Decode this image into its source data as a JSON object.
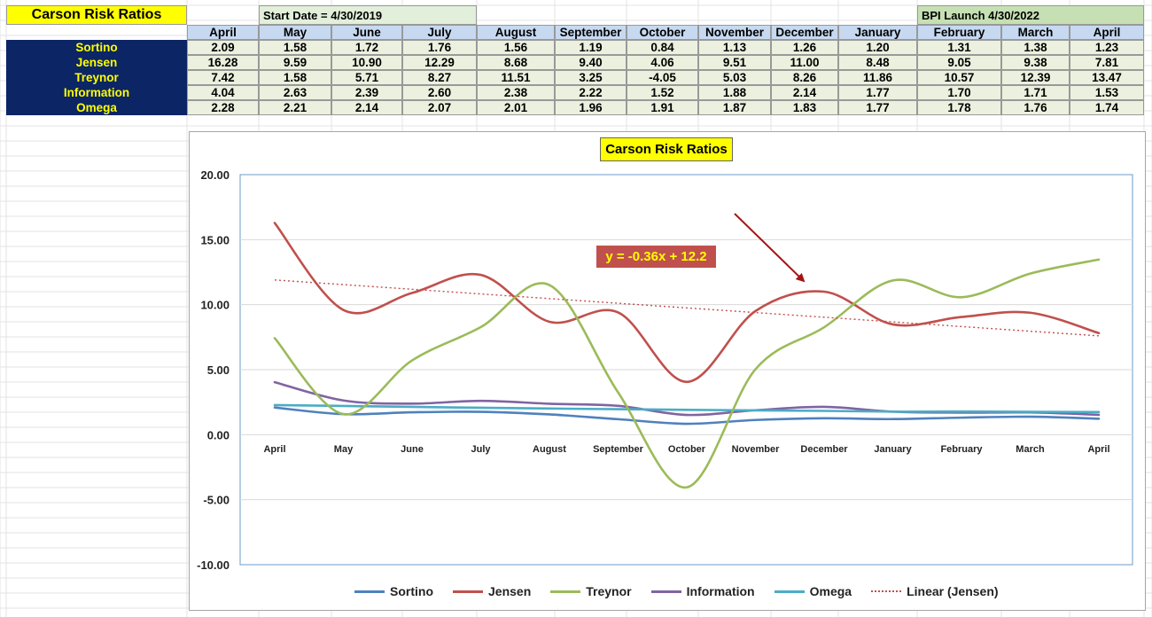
{
  "sheet": {
    "title": "Carson Risk Ratios",
    "start_note": "Start Date = 4/30/2019",
    "bpi_note": "BPI Launch 4/30/2022",
    "months": [
      "April",
      "May",
      "June",
      "July",
      "August",
      "September",
      "October",
      "November",
      "December",
      "January",
      "February",
      "March",
      "April"
    ],
    "rows": [
      {
        "label": "Sortino",
        "values": [
          "2.09",
          "1.58",
          "1.72",
          "1.76",
          "1.56",
          "1.19",
          "0.84",
          "1.13",
          "1.26",
          "1.20",
          "1.31",
          "1.38",
          "1.23"
        ]
      },
      {
        "label": "Jensen",
        "values": [
          "16.28",
          "9.59",
          "10.90",
          "12.29",
          "8.68",
          "9.40",
          "4.06",
          "9.51",
          "11.00",
          "8.48",
          "9.05",
          "9.38",
          "7.81"
        ]
      },
      {
        "label": "Treynor",
        "values": [
          "7.42",
          "1.58",
          "5.71",
          "8.27",
          "11.51",
          "3.25",
          "-4.05",
          "5.03",
          "8.26",
          "11.86",
          "10.57",
          "12.39",
          "13.47"
        ]
      },
      {
        "label": "Information",
        "values": [
          "4.04",
          "2.63",
          "2.39",
          "2.60",
          "2.38",
          "2.22",
          "1.52",
          "1.88",
          "2.14",
          "1.77",
          "1.70",
          "1.71",
          "1.53"
        ]
      },
      {
        "label": "Omega",
        "values": [
          "2.28",
          "2.21",
          "2.14",
          "2.07",
          "2.01",
          "1.96",
          "1.91",
          "1.87",
          "1.83",
          "1.77",
          "1.78",
          "1.76",
          "1.74"
        ]
      }
    ]
  },
  "chart_data": {
    "type": "line",
    "title": "Carson Risk Ratios",
    "categories": [
      "April",
      "May",
      "June",
      "July",
      "August",
      "September",
      "October",
      "November",
      "December",
      "January",
      "February",
      "March",
      "April"
    ],
    "ylim": [
      -10,
      20
    ],
    "yticks": [
      "20.00",
      "15.00",
      "10.00",
      "5.00",
      "0.00",
      "-5.00",
      "-10.00"
    ],
    "ytick_values": [
      20,
      15,
      10,
      5,
      0,
      -5,
      -10
    ],
    "grid": true,
    "legend_position": "bottom",
    "series": [
      {
        "name": "Sortino",
        "color": "#4f81bd",
        "values": [
          2.09,
          1.58,
          1.72,
          1.76,
          1.56,
          1.19,
          0.84,
          1.13,
          1.26,
          1.2,
          1.31,
          1.38,
          1.23
        ]
      },
      {
        "name": "Jensen",
        "color": "#c0504d",
        "values": [
          16.28,
          9.59,
          10.9,
          12.29,
          8.68,
          9.4,
          4.06,
          9.51,
          11.0,
          8.48,
          9.05,
          9.38,
          7.81
        ]
      },
      {
        "name": "Treynor",
        "color": "#9bbb59",
        "values": [
          7.42,
          1.58,
          5.71,
          8.27,
          11.51,
          3.25,
          -4.05,
          5.03,
          8.26,
          11.86,
          10.57,
          12.39,
          13.47
        ]
      },
      {
        "name": "Information",
        "color": "#8064a2",
        "values": [
          4.04,
          2.63,
          2.39,
          2.6,
          2.38,
          2.22,
          1.52,
          1.88,
          2.14,
          1.77,
          1.7,
          1.71,
          1.53
        ]
      },
      {
        "name": "Omega",
        "color": "#4bacc6",
        "values": [
          2.28,
          2.21,
          2.14,
          2.07,
          2.01,
          1.96,
          1.91,
          1.87,
          1.83,
          1.77,
          1.78,
          1.76,
          1.74
        ]
      }
    ],
    "trendline": {
      "name": "Linear (Jensen)",
      "color": "#c0504d",
      "start": 11.9,
      "end": 7.6
    },
    "annotation": {
      "text": "y = -0.36x + 12.2",
      "arrow_color": "#a31515"
    }
  }
}
